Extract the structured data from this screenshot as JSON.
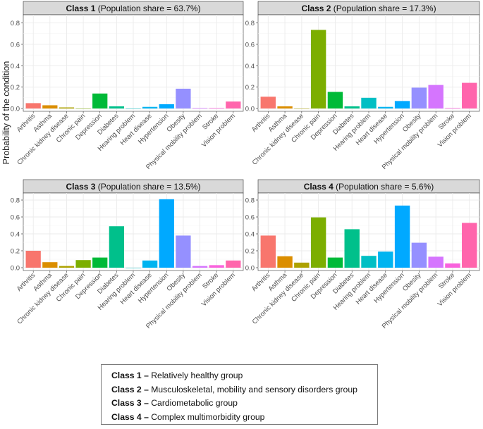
{
  "figure": {
    "ylabel": "Probability of the condition",
    "population_share_prefix": "Population share"
  },
  "chart_data": [
    {
      "type": "bar",
      "title": "Class 1",
      "subtitle": "(Population share = 63.7%)",
      "xlabel": "",
      "ylabel": "Probability of the condition",
      "ylim": [
        0,
        0.85
      ],
      "yticks": [
        "0.0",
        "0.2",
        "0.4",
        "0.6",
        "0.8"
      ],
      "grid": true,
      "categories": [
        "Arthritis",
        "Asthma",
        "Chronic kidney disease",
        "Chronic pain",
        "Depression",
        "Diabetes",
        "Hearing problem",
        "Heart disease",
        "Hypertension",
        "Obesity",
        "Physical mobility problem",
        "Stroke",
        "Vision problem"
      ],
      "values": [
        0.05,
        0.03,
        0.01,
        0.0,
        0.14,
        0.02,
        0.0,
        0.015,
        0.04,
        0.185,
        0.005,
        0.005,
        0.065
      ]
    },
    {
      "type": "bar",
      "title": "Class 2",
      "subtitle": "(Population share = 17.3%)",
      "xlabel": "",
      "ylabel": "Probability of the condition",
      "ylim": [
        0,
        0.85
      ],
      "yticks": [
        "0.0",
        "0.2",
        "0.4",
        "0.6",
        "0.8"
      ],
      "grid": true,
      "categories": [
        "Arthritis",
        "Asthma",
        "Chronic kidney disease",
        "Chronic pain",
        "Depression",
        "Diabetes",
        "Hearing problem",
        "Heart disease",
        "Hypertension",
        "Obesity",
        "Physical mobility problem",
        "Stroke",
        "Vision problem"
      ],
      "values": [
        0.11,
        0.02,
        0.0,
        0.735,
        0.155,
        0.02,
        0.1,
        0.015,
        0.07,
        0.195,
        0.22,
        0.005,
        0.24
      ]
    },
    {
      "type": "bar",
      "title": "Class 3",
      "subtitle": "(Population share = 13.5%)",
      "xlabel": "",
      "ylabel": "Probability of the condition",
      "ylim": [
        0,
        0.85
      ],
      "yticks": [
        "0.0",
        "0.2",
        "0.4",
        "0.6",
        "0.8"
      ],
      "grid": true,
      "categories": [
        "Arthritis",
        "Asthma",
        "Chronic kidney disease",
        "Chronic pain",
        "Depression",
        "Diabetes",
        "Hearing problem",
        "Heart disease",
        "Hypertension",
        "Obesity",
        "Physical mobility problem",
        "Stroke",
        "Vision problem"
      ],
      "values": [
        0.2,
        0.065,
        0.02,
        0.09,
        0.12,
        0.49,
        0.0,
        0.085,
        0.81,
        0.38,
        0.02,
        0.03,
        0.085
      ]
    },
    {
      "type": "bar",
      "title": "Class 4",
      "subtitle": "(Population share = 5.6%)",
      "xlabel": "",
      "ylabel": "Probability of the condition",
      "ylim": [
        0,
        0.85
      ],
      "yticks": [
        "0.0",
        "0.2",
        "0.4",
        "0.6",
        "0.8"
      ],
      "grid": true,
      "categories": [
        "Arthritis",
        "Asthma",
        "Chronic kidney disease",
        "Chronic pain",
        "Depression",
        "Diabetes",
        "Hearing problem",
        "Heart disease",
        "Hypertension",
        "Obesity",
        "Physical mobility problem",
        "Stroke",
        "Vision problem"
      ],
      "values": [
        0.38,
        0.135,
        0.06,
        0.595,
        0.12,
        0.455,
        0.14,
        0.19,
        0.735,
        0.295,
        0.13,
        0.05,
        0.53
      ]
    }
  ],
  "colors": {
    "categories": [
      "#F8766D",
      "#DB8E00",
      "#AEA200",
      "#64B200",
      "#00BD5C",
      "#00C1A7",
      "#00BADE",
      "#00A6FF",
      "#B385FF",
      "#EF67EB",
      "#FF63B6",
      "#FF6C91",
      "#FF79B0"
    ],
    "bar_palette": [
      "#F8766D",
      "#DB8E00",
      "#AEA200",
      "#7CAE00",
      "#00BA38",
      "#00C08B",
      "#00BFC4",
      "#00B4F0",
      "#00A9FF",
      "#9590FF",
      "#D575FE",
      "#F962DD",
      "#FF65AC"
    ],
    "panel_background": "#ffffff",
    "strip_background": "#d9d9d9",
    "grid": "#ebebeb",
    "axis_text": "#4d4d4d"
  },
  "legend": {
    "items": [
      {
        "label": "Class 1",
        "description": "Relatively healthy group"
      },
      {
        "label": "Class 2",
        "description": "Musculoskeletal, mobility and sensory disorders group"
      },
      {
        "label": "Class 3",
        "description": "Cardiometabolic group"
      },
      {
        "label": "Class 4",
        "description": "Complex multimorbidity group"
      }
    ],
    "separator": "–"
  }
}
